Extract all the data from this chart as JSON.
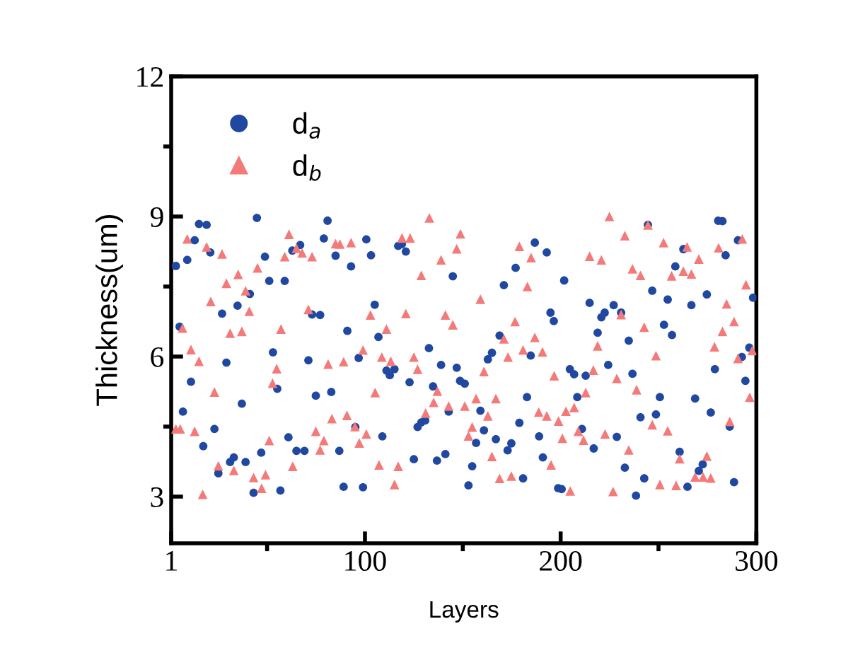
{
  "chart_data": {
    "type": "scatter",
    "xlabel": "Layers",
    "ylabel": "Thickness(um)",
    "xlim": [
      1,
      300
    ],
    "ylim": [
      2,
      12
    ],
    "xticks": [
      1,
      {
        "value": 50,
        "label": null
      },
      100,
      {
        "value": 150,
        "label": null
      },
      200,
      {
        "value": 250,
        "label": null
      },
      300
    ],
    "yticks": [
      3,
      {
        "value": 4.5,
        "label": null
      },
      6,
      {
        "value": 7.5,
        "label": null
      },
      9,
      {
        "value": 10.5,
        "label": null
      },
      12
    ],
    "grid": false,
    "legend": "top left",
    "series": [
      {
        "name": "d$_{a}$",
        "color": "#2148a0",
        "marker": "circle",
        "x": [
          15.2,
          19.1,
          44.8,
          80.9,
          13.0,
          9.2,
          3.4,
          21.0,
          48.9,
          62.9,
          66.9,
          79.0,
          85.0,
          92.9,
          100.7,
          51.1,
          59.0,
          41.2,
          34.9,
          27.0,
          5.3,
          73.0,
          77.1,
          91.0,
          53.0,
          29.2,
          71.1,
          96.8,
          11.1,
          55.2,
          82.8,
          74.9,
          37.1,
          7.0,
          23.1,
          95.1,
          17.4,
          60.9,
          47.0,
          65.0,
          69.1,
          86.9,
          33.0,
          31.1,
          39.0,
          25.1,
          43.1,
          56.8,
          89.1,
          99.0,
          103.1,
          117.0,
          118.9,
          120.9,
          144.9,
          186.8,
          192.9,
          177.0,
          171.0,
          201.8,
          105.0,
          194.8,
          196.5,
          106.9,
          168.8,
          132.7,
          164.9,
          162.8,
          184.7,
          138.9,
          146.9,
          111.0,
          115.1,
          112.7,
          122.8,
          148.6,
          151.0,
          134.8,
          142.8,
          182.8,
          159.0,
          128.8,
          130.8,
          126.9,
          178.9,
          160.8,
          108.9,
          166.9,
          156.8,
          174.8,
          172.9,
          189.0,
          141.1,
          125.0,
          136.8,
          190.9,
          154.8,
          180.8,
          152.9,
          198.7,
          200.5,
          244.6,
          280.5,
          282.7,
          290.6,
          262.7,
          284.3,
          258.6,
          246.8,
          254.7,
          274.7,
          298.3,
          214.8,
          227.1,
          266.8,
          222.5,
          220.8,
          230.9,
          252.8,
          218.9,
          256.9,
          234.8,
          296.4,
          292.6,
          278.8,
          204.7,
          206.9,
          212.8,
          224.3,
          236.7,
          294.4,
          208.5,
          250.7,
          268.7,
          240.8,
          248.7,
          276.7,
          210.9,
          228.7,
          216.9,
          286.4,
          260.8,
          272.6,
          270.6,
          232.8,
          242.7,
          288.6,
          264.8,
          238.5
        ],
        "values": [
          8.84,
          8.82,
          8.97,
          8.91,
          8.49,
          8.07,
          7.94,
          8.23,
          8.14,
          8.27,
          8.39,
          8.53,
          8.16,
          7.93,
          8.51,
          7.62,
          7.62,
          7.34,
          7.09,
          6.92,
          6.64,
          6.9,
          6.89,
          6.55,
          6.09,
          5.87,
          5.92,
          5.97,
          5.46,
          5.31,
          5.24,
          5.16,
          4.99,
          4.82,
          4.45,
          4.49,
          4.08,
          4.27,
          3.94,
          3.98,
          3.98,
          3.98,
          3.84,
          3.74,
          3.74,
          3.5,
          3.08,
          3.13,
          3.21,
          3.2,
          8.17,
          8.37,
          8.41,
          8.25,
          7.72,
          8.44,
          8.23,
          7.9,
          7.53,
          7.63,
          7.11,
          6.94,
          6.76,
          6.42,
          6.45,
          6.18,
          6.08,
          5.94,
          6.02,
          5.82,
          5.76,
          5.7,
          5.73,
          5.6,
          5.45,
          5.48,
          5.42,
          5.36,
          4.82,
          5.13,
          4.84,
          4.59,
          4.63,
          4.49,
          4.58,
          4.42,
          4.29,
          4.23,
          4.15,
          4.14,
          3.99,
          4.29,
          3.91,
          3.8,
          3.77,
          3.84,
          3.65,
          3.39,
          3.24,
          3.18,
          3.16,
          8.82,
          8.91,
          8.9,
          8.49,
          8.3,
          8.17,
          7.93,
          7.41,
          7.22,
          7.33,
          7.26,
          7.15,
          7.1,
          7.1,
          6.94,
          6.84,
          6.94,
          6.68,
          6.51,
          6.46,
          6.34,
          6.19,
          5.99,
          5.73,
          5.73,
          5.62,
          5.59,
          5.82,
          5.63,
          5.48,
          5.13,
          5.13,
          5.1,
          4.7,
          4.76,
          4.8,
          4.45,
          4.28,
          4.03,
          4.5,
          3.96,
          3.69,
          3.55,
          3.62,
          3.39,
          3.31,
          3.21,
          3.02
        ]
      },
      {
        "name": "d$_{b}$",
        "color": "#f47a7a",
        "marker": "triangle",
        "x": [
          9.2,
          19.1,
          27.0,
          61.2,
          45.1,
          59.0,
          65.0,
          67.9,
          73.0,
          85.0,
          87.2,
          92.9,
          35.2,
          29.2,
          39.0,
          21.2,
          40.9,
          71.1,
          31.1,
          37.1,
          57.1,
          6.8,
          11.1,
          15.2,
          54.9,
          52.8,
          81.2,
          89.1,
          99.0,
          23.1,
          90.8,
          83.1,
          3.4,
          5.6,
          13.0,
          74.9,
          94.9,
          100.7,
          79.0,
          51.1,
          97.1,
          77.1,
          25.1,
          33.0,
          63.1,
          43.1,
          49.2,
          47.2,
          17.1,
          132.9,
          118.9,
          123.1,
          148.8,
          146.9,
          138.9,
          128.8,
          178.9,
          184.9,
          183.0,
          159.0,
          102.8,
          120.9,
          141.1,
          144.9,
          111.0,
          176.7,
          171.0,
          186.8,
          108.6,
          113.2,
          125.0,
          126.9,
          173.1,
          180.8,
          190.7,
          160.8,
          196.7,
          105.2,
          137.0,
          135.1,
          156.8,
          166.9,
          142.8,
          151.0,
          131.0,
          162.8,
          188.8,
          192.9,
          198.9,
          200.9,
          154.8,
          152.9,
          164.9,
          107.2,
          117.0,
          195.1,
          115.1,
          168.8,
          174.8,
          224.9,
          244.6,
          232.8,
          252.6,
          264.6,
          270.6,
          280.7,
          292.8,
          214.8,
          220.8,
          236.7,
          240.8,
          256.7,
          262.7,
          266.8,
          294.7,
          230.9,
          284.8,
          288.6,
          242.7,
          282.7,
          218.9,
          278.6,
          248.7,
          290.6,
          297.9,
          216.7,
          228.7,
          238.8,
          212.8,
          296.6,
          202.7,
          206.9,
          246.8,
          254.7,
          286.4,
          209.0,
          211.7,
          222.7,
          234.8,
          260.8,
          274.7,
          268.7,
          272.8,
          276.7,
          204.9,
          226.8,
          250.7,
          259.0
        ],
        "values": [
          8.52,
          8.35,
          8.2,
          8.62,
          7.9,
          8.14,
          8.32,
          8.22,
          8.14,
          8.42,
          8.41,
          8.44,
          7.76,
          7.57,
          7.41,
          7.18,
          6.97,
          7.01,
          6.5,
          6.54,
          6.59,
          6.61,
          6.15,
          5.9,
          5.74,
          5.43,
          5.84,
          5.89,
          6.14,
          5.24,
          4.74,
          4.67,
          4.45,
          4.45,
          4.4,
          4.4,
          4.5,
          4.34,
          4.2,
          4.2,
          4.15,
          4.0,
          3.66,
          3.56,
          3.65,
          3.41,
          3.47,
          3.18,
          3.05,
          8.97,
          8.54,
          8.54,
          8.63,
          8.31,
          8.07,
          7.74,
          8.36,
          8.12,
          7.5,
          7.23,
          6.89,
          6.92,
          6.89,
          6.68,
          6.59,
          6.75,
          6.38,
          6.41,
          5.99,
          5.9,
          5.99,
          5.73,
          5.99,
          6.14,
          6.1,
          5.68,
          5.59,
          5.23,
          5.26,
          5.02,
          5.1,
          5.1,
          4.94,
          4.94,
          4.79,
          4.73,
          4.81,
          4.73,
          4.62,
          4.25,
          4.49,
          4.3,
          3.86,
          3.68,
          3.65,
          3.68,
          3.26,
          3.39,
          3.44,
          9.0,
          8.82,
          8.59,
          8.44,
          8.35,
          8.09,
          8.33,
          8.52,
          8.15,
          8.07,
          7.88,
          7.74,
          7.73,
          7.83,
          7.77,
          7.54,
          6.9,
          7.13,
          6.75,
          6.63,
          6.54,
          6.23,
          6.21,
          6.02,
          5.96,
          6.13,
          5.71,
          5.53,
          5.29,
          5.23,
          5.13,
          4.83,
          4.91,
          4.54,
          4.41,
          4.61,
          4.4,
          4.21,
          4.34,
          4.0,
          3.81,
          3.87,
          3.42,
          3.42,
          3.4,
          3.12,
          3.11,
          3.26,
          3.24
        ]
      }
    ]
  }
}
